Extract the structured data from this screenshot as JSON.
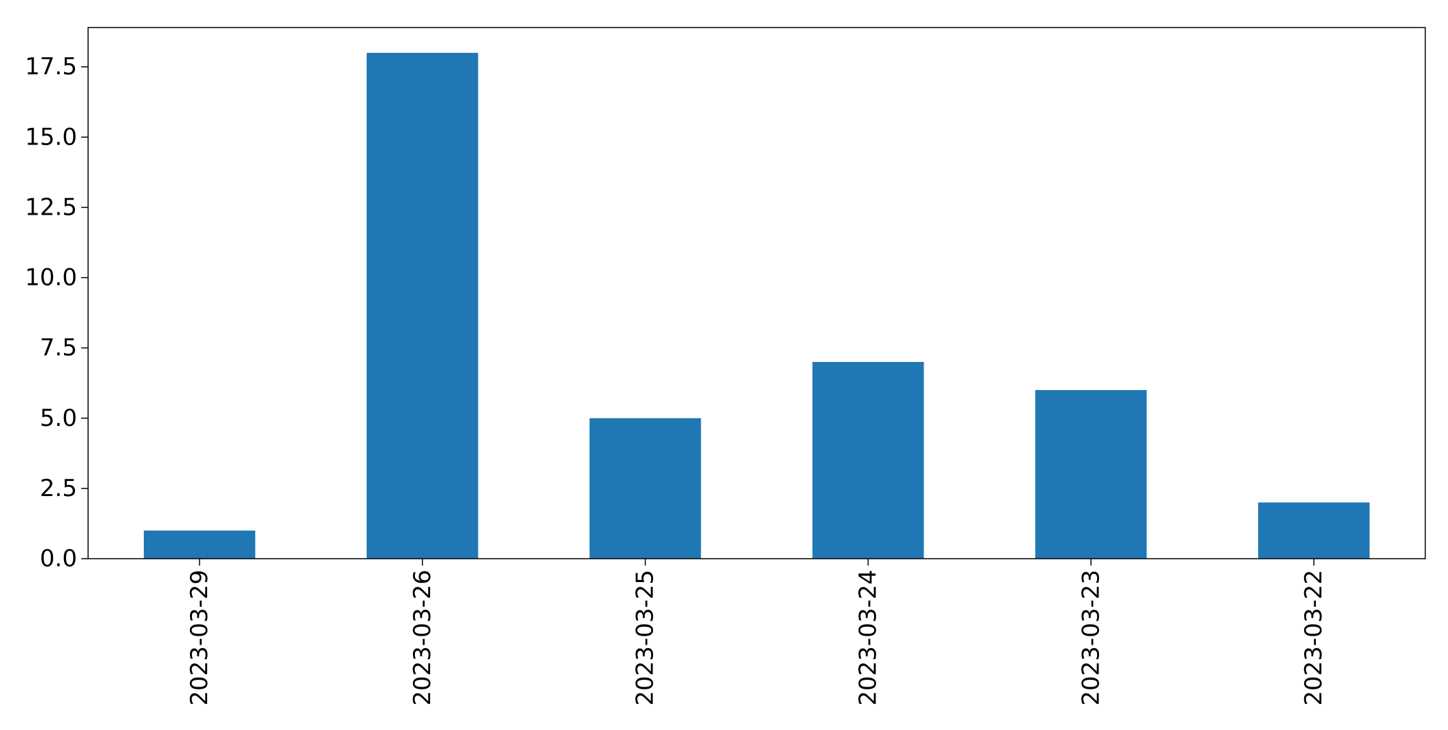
{
  "chart_data": {
    "type": "bar",
    "title": "",
    "xlabel": "",
    "ylabel": "",
    "categories": [
      "2023-03-29",
      "2023-03-26",
      "2023-03-25",
      "2023-03-24",
      "2023-03-23",
      "2023-03-22"
    ],
    "values": [
      1,
      18,
      5,
      7,
      6,
      2
    ],
    "ylim": [
      0,
      18.9
    ],
    "yticks": [
      0.0,
      2.5,
      5.0,
      7.5,
      10.0,
      12.5,
      15.0,
      17.5
    ],
    "ytick_labels": [
      "0.0",
      "2.5",
      "5.0",
      "7.5",
      "10.0",
      "12.5",
      "15.0",
      "17.5"
    ],
    "grid": false,
    "legend": "none",
    "x_tick_rotation": "vertical",
    "bar_color": "#1f77b4"
  }
}
